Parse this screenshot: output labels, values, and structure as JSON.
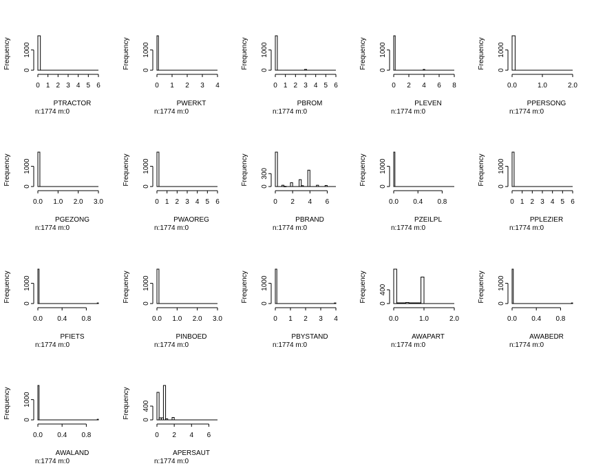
{
  "chart_data": [
    {
      "type": "bar",
      "xlabel": "PTRACTOR",
      "ylabel": "Frequency",
      "note": "n:1774 m:0",
      "xticks": [
        "0",
        "1",
        "2",
        "3",
        "4",
        "5",
        "6"
      ],
      "yticks": [
        "0",
        "1000"
      ],
      "xlim": [
        0,
        6
      ],
      "ylim": [
        0,
        1700
      ],
      "bins": [
        {
          "x0": 0,
          "x1": 0.25,
          "v": 1700
        }
      ]
    },
    {
      "type": "bar",
      "xlabel": "PWERKT",
      "ylabel": "Frequency",
      "note": "n:1774 m:0",
      "xticks": [
        "0",
        "1",
        "2",
        "3",
        "4"
      ],
      "yticks": [
        "0",
        "1000"
      ],
      "xlim": [
        0,
        4
      ],
      "ylim": [
        0,
        1700
      ],
      "bins": [
        {
          "x0": 0,
          "x1": 0.1,
          "v": 1700
        }
      ]
    },
    {
      "type": "bar",
      "xlabel": "PBROM",
      "ylabel": "Frequency",
      "note": "n:1774 m:0",
      "xticks": [
        "0",
        "1",
        "2",
        "3",
        "4",
        "5",
        "6"
      ],
      "yticks": [
        "0",
        "1000"
      ],
      "xlim": [
        0,
        6
      ],
      "ylim": [
        0,
        1700
      ],
      "bins": [
        {
          "x0": 0,
          "x1": 0.2,
          "v": 1700
        },
        {
          "x0": 2.9,
          "x1": 3.1,
          "v": 40
        }
      ]
    },
    {
      "type": "bar",
      "xlabel": "PLEVEN",
      "ylabel": "Frequency",
      "note": "n:1774 m:0",
      "xticks": [
        "0",
        "2",
        "4",
        "6",
        "8"
      ],
      "yticks": [
        "0",
        "1000"
      ],
      "xlim": [
        0,
        8
      ],
      "ylim": [
        0,
        1700
      ],
      "bins": [
        {
          "x0": 0,
          "x1": 0.2,
          "v": 1700
        },
        {
          "x0": 3.9,
          "x1": 4.1,
          "v": 40
        }
      ]
    },
    {
      "type": "bar",
      "xlabel": "PPERSONG",
      "ylabel": "Frequency",
      "note": "n:1774 m:0",
      "xticks": [
        "0.0",
        "1.0",
        "2.0"
      ],
      "yticks": [
        "0",
        "1000"
      ],
      "xlim": [
        0,
        2
      ],
      "ylim": [
        0,
        1700
      ],
      "bins": [
        {
          "x0": 0,
          "x1": 0.1,
          "v": 1700
        }
      ]
    },
    {
      "type": "bar",
      "xlabel": "PGEZONG",
      "ylabel": "Frequency",
      "note": "n:1774 m:0",
      "xticks": [
        "0.0",
        "1.0",
        "2.0",
        "3.0"
      ],
      "yticks": [
        "0",
        "1000"
      ],
      "xlim": [
        0,
        3
      ],
      "ylim": [
        0,
        1700
      ],
      "bins": [
        {
          "x0": 0,
          "x1": 0.1,
          "v": 1700
        }
      ]
    },
    {
      "type": "bar",
      "xlabel": "PWAOREG",
      "ylabel": "Frequency",
      "note": "n:1774 m:0",
      "xticks": [
        "0",
        "1",
        "2",
        "3",
        "4",
        "5",
        "6"
      ],
      "yticks": [
        "0",
        "1000"
      ],
      "xlim": [
        0,
        6
      ],
      "ylim": [
        0,
        1700
      ],
      "bins": [
        {
          "x0": 0,
          "x1": 0.2,
          "v": 1700
        }
      ]
    },
    {
      "type": "bar",
      "xlabel": "PBRAND",
      "ylabel": "Frequency",
      "note": "n:1774 m:0",
      "xticks": [
        "0",
        "2",
        "4",
        "6"
      ],
      "yticks": [
        "0",
        "300"
      ],
      "xlim": [
        0,
        7
      ],
      "ylim": [
        0,
        800
      ],
      "bins": [
        {
          "x0": 0,
          "x1": 0.25,
          "v": 800
        },
        {
          "x0": 0.75,
          "x1": 1,
          "v": 30
        },
        {
          "x0": 1,
          "x1": 1.25,
          "v": 5
        },
        {
          "x0": 1.75,
          "x1": 2,
          "v": 90
        },
        {
          "x0": 2.75,
          "x1": 3,
          "v": 160
        },
        {
          "x0": 3,
          "x1": 3.25,
          "v": 20
        },
        {
          "x0": 3.75,
          "x1": 4,
          "v": 380
        },
        {
          "x0": 4.75,
          "x1": 5,
          "v": 30
        },
        {
          "x0": 5.75,
          "x1": 6,
          "v": 25
        }
      ]
    },
    {
      "type": "bar",
      "xlabel": "PZEILPL",
      "ylabel": "Frequency",
      "note": "n:1774 m:0",
      "xticks": [
        "0.0",
        "0.4",
        "0.8"
      ],
      "yticks": [
        "0",
        "1000"
      ],
      "xlim": [
        0,
        1
      ],
      "ylim": [
        0,
        1700
      ],
      "bins": [
        {
          "x0": 0,
          "x1": 0.02,
          "v": 1700
        }
      ]
    },
    {
      "type": "bar",
      "xlabel": "PPLEZIER",
      "ylabel": "Frequency",
      "note": "n:1774 m:0",
      "xticks": [
        "0",
        "1",
        "2",
        "3",
        "4",
        "5",
        "6"
      ],
      "yticks": [
        "0",
        "1000"
      ],
      "xlim": [
        0,
        6
      ],
      "ylim": [
        0,
        1700
      ],
      "bins": [
        {
          "x0": 0,
          "x1": 0.2,
          "v": 1700
        }
      ]
    },
    {
      "type": "bar",
      "xlabel": "PFIETS",
      "ylabel": "Frequency",
      "note": "n:1774 m:0",
      "xticks": [
        "0.0",
        "0.4",
        "0.8"
      ],
      "yticks": [
        "0",
        "1000"
      ],
      "xlim": [
        0,
        1
      ],
      "ylim": [
        0,
        1700
      ],
      "bins": [
        {
          "x0": 0,
          "x1": 0.02,
          "v": 1700
        },
        {
          "x0": 0.98,
          "x1": 1,
          "v": 30
        }
      ]
    },
    {
      "type": "bar",
      "xlabel": "PINBOED",
      "ylabel": "Frequency",
      "note": "n:1774 m:0",
      "xticks": [
        "0.0",
        "1.0",
        "2.0",
        "3.0"
      ],
      "yticks": [
        "0",
        "1000"
      ],
      "xlim": [
        0,
        3
      ],
      "ylim": [
        0,
        1700
      ],
      "bins": [
        {
          "x0": 0,
          "x1": 0.1,
          "v": 1700
        }
      ]
    },
    {
      "type": "bar",
      "xlabel": "PBYSTAND",
      "ylabel": "Frequency",
      "note": "n:1774 m:0",
      "xticks": [
        "0",
        "1",
        "2",
        "3",
        "4"
      ],
      "yticks": [
        "0",
        "1000"
      ],
      "xlim": [
        0,
        4
      ],
      "ylim": [
        0,
        1700
      ],
      "bins": [
        {
          "x0": 0,
          "x1": 0.1,
          "v": 1700
        },
        {
          "x0": 3.9,
          "x1": 4,
          "v": 30
        }
      ]
    },
    {
      "type": "bar",
      "xlabel": "AWAPART",
      "ylabel": "Frequency",
      "note": "n:1774 m:0",
      "xticks": [
        "0.0",
        "1.0",
        "2.0"
      ],
      "yticks": [
        "0",
        "400"
      ],
      "xlim": [
        0,
        2
      ],
      "ylim": [
        0,
        1000
      ],
      "bins": [
        {
          "x0": 0,
          "x1": 0.1,
          "v": 1000
        },
        {
          "x0": 0.1,
          "x1": 0.4,
          "v": 20
        },
        {
          "x0": 0.4,
          "x1": 0.5,
          "v": 30
        },
        {
          "x0": 0.5,
          "x1": 0.9,
          "v": 20
        },
        {
          "x0": 0.9,
          "x1": 1,
          "v": 770
        }
      ]
    },
    {
      "type": "bar",
      "xlabel": "AWABEDR",
      "ylabel": "Frequency",
      "note": "n:1774 m:0",
      "xticks": [
        "0.0",
        "0.4",
        "0.8"
      ],
      "yticks": [
        "0",
        "1000"
      ],
      "xlim": [
        0,
        1
      ],
      "ylim": [
        0,
        1700
      ],
      "bins": [
        {
          "x0": 0,
          "x1": 0.02,
          "v": 1700
        },
        {
          "x0": 0.98,
          "x1": 1,
          "v": 30
        }
      ]
    },
    {
      "type": "bar",
      "xlabel": "AWALAND",
      "ylabel": "Frequency",
      "note": "n:1774 m:0",
      "xticks": [
        "0.0",
        "0.4",
        "0.8"
      ],
      "yticks": [
        "0",
        "1000"
      ],
      "xlim": [
        0,
        1
      ],
      "ylim": [
        0,
        1700
      ],
      "bins": [
        {
          "x0": 0,
          "x1": 0.02,
          "v": 1700
        },
        {
          "x0": 0.98,
          "x1": 1,
          "v": 30
        }
      ]
    },
    {
      "type": "bar",
      "xlabel": "APERSAUT",
      "ylabel": "Frequency",
      "note": "n:1774 m:0",
      "xticks": [
        "0",
        "2",
        "4",
        "6"
      ],
      "yticks": [
        "0",
        "400"
      ],
      "xlim": [
        0,
        7
      ],
      "ylim": [
        0,
        1000
      ],
      "bins": [
        {
          "x0": 0,
          "x1": 0.25,
          "v": 800
        },
        {
          "x0": 0.25,
          "x1": 0.5,
          "v": 60
        },
        {
          "x0": 0.5,
          "x1": 0.75,
          "v": 60
        },
        {
          "x0": 0.75,
          "x1": 1,
          "v": 1000
        },
        {
          "x0": 1,
          "x1": 1.25,
          "v": 30
        },
        {
          "x0": 1.75,
          "x1": 2,
          "v": 70
        }
      ]
    }
  ]
}
